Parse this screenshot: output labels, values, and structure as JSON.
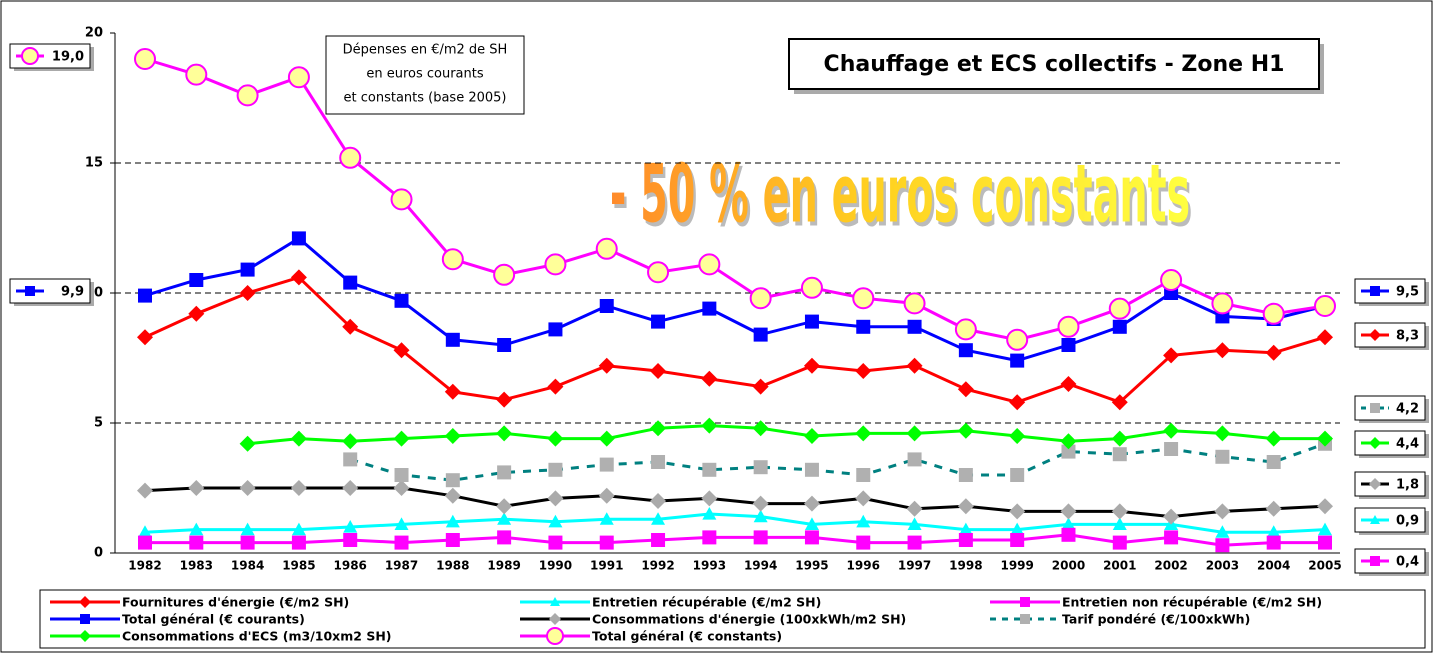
{
  "chart_data": {
    "type": "line",
    "title": "Chauffage et ECS collectifs - Zone H1",
    "annotations": [
      "Dépenses en €/m2 de SH",
      "en euros courants",
      "et constants (base 2005)",
      "- 50 % en euros constants"
    ],
    "categories": [
      "1982",
      "1983",
      "1984",
      "1985",
      "1986",
      "1987",
      "1988",
      "1989",
      "1990",
      "1991",
      "1992",
      "1993",
      "1994",
      "1995",
      "1996",
      "1997",
      "1998",
      "1999",
      "2000",
      "2001",
      "2002",
      "2003",
      "2004",
      "2005"
    ],
    "ylim": [
      0,
      20
    ],
    "yticks": [
      0,
      5,
      10,
      15,
      20
    ],
    "grid": true,
    "series": [
      {
        "name": "Fournitures d'énergie (€/m2 SH)",
        "color": "#ff0000",
        "marker": "diamond",
        "values": [
          8.3,
          9.2,
          10.0,
          10.6,
          8.7,
          7.8,
          6.2,
          5.9,
          6.4,
          7.2,
          7.0,
          6.7,
          6.4,
          7.2,
          7.0,
          7.2,
          6.3,
          5.8,
          6.5,
          5.8,
          7.6,
          7.8,
          7.7,
          8.3
        ],
        "value_labels": [
          null,
          null,
          null,
          null,
          null,
          null,
          null,
          null,
          null,
          null,
          null,
          null,
          null,
          null,
          null,
          null,
          null,
          null,
          null,
          null,
          null,
          null,
          null,
          "8,3"
        ]
      },
      {
        "name": "Entretien récupérable (€/m2 SH)",
        "color": "#00ffff",
        "marker": "triangle",
        "values": [
          0.8,
          0.9,
          0.9,
          0.9,
          1.0,
          1.1,
          1.2,
          1.3,
          1.2,
          1.3,
          1.3,
          1.5,
          1.4,
          1.1,
          1.2,
          1.1,
          0.9,
          0.9,
          1.1,
          1.1,
          1.1,
          0.8,
          0.8,
          0.9
        ],
        "value_labels": [
          null,
          null,
          null,
          null,
          null,
          null,
          null,
          null,
          null,
          null,
          null,
          null,
          null,
          null,
          null,
          null,
          null,
          null,
          null,
          null,
          null,
          null,
          null,
          "0,9"
        ]
      },
      {
        "name": "Entretien non récupérable (€/m2 SH)",
        "color": "#ff00ff",
        "marker": "square",
        "values": [
          0.4,
          0.4,
          0.4,
          0.4,
          0.5,
          0.4,
          0.5,
          0.6,
          0.4,
          0.4,
          0.5,
          0.6,
          0.6,
          0.6,
          0.4,
          0.4,
          0.5,
          0.5,
          0.7,
          0.4,
          0.6,
          0.3,
          0.4,
          0.4
        ],
        "value_labels": [
          null,
          null,
          null,
          null,
          null,
          null,
          null,
          null,
          null,
          null,
          null,
          null,
          null,
          null,
          null,
          null,
          null,
          null,
          null,
          null,
          null,
          null,
          null,
          "0,4"
        ]
      },
      {
        "name": "Total général (€ courants)",
        "color": "#0000ff",
        "marker": "square",
        "values": [
          9.9,
          10.5,
          10.9,
          12.1,
          10.4,
          9.7,
          8.2,
          8.0,
          8.6,
          9.5,
          8.9,
          9.4,
          8.4,
          8.9,
          8.7,
          8.7,
          7.8,
          7.4,
          8.0,
          8.7,
          10.0,
          9.1,
          9.0,
          9.5
        ],
        "value_labels": [
          "9,9",
          null,
          null,
          null,
          null,
          null,
          null,
          null,
          null,
          null,
          null,
          null,
          null,
          null,
          null,
          null,
          null,
          null,
          null,
          null,
          null,
          null,
          null,
          "9,5"
        ]
      },
      {
        "name": "Consommations d'énergie (100xkWh/m2 SH)",
        "color": "#000000",
        "marker": "diamond",
        "marker_color": "#aaaaaa",
        "values": [
          2.4,
          2.5,
          2.5,
          2.5,
          2.5,
          2.5,
          2.2,
          1.8,
          2.1,
          2.2,
          2.0,
          2.1,
          1.9,
          1.9,
          2.1,
          1.7,
          1.8,
          1.6,
          1.6,
          1.6,
          1.4,
          1.6,
          1.7,
          1.8
        ],
        "value_labels": [
          null,
          null,
          null,
          null,
          null,
          null,
          null,
          null,
          null,
          null,
          null,
          null,
          null,
          null,
          null,
          null,
          null,
          null,
          null,
          null,
          null,
          null,
          null,
          "1,8"
        ]
      },
      {
        "name": "Tarif pondéré (€/100xkWh)",
        "color": "#008080",
        "marker": "square",
        "marker_color": "#b0b0b0",
        "dashed": true,
        "values": [
          null,
          null,
          null,
          null,
          3.6,
          3.0,
          2.8,
          3.1,
          3.2,
          3.4,
          3.5,
          3.2,
          3.3,
          3.2,
          3.0,
          3.6,
          3.0,
          3.0,
          3.9,
          3.8,
          4.0,
          3.7,
          3.5,
          4.2
        ],
        "value_labels": [
          null,
          null,
          null,
          null,
          null,
          null,
          null,
          null,
          null,
          null,
          null,
          null,
          null,
          null,
          null,
          null,
          null,
          null,
          null,
          null,
          null,
          null,
          null,
          "4,2"
        ]
      },
      {
        "name": "Consommations d'ECS (m3/10xm2 SH)",
        "color": "#00ff00",
        "marker": "diamond",
        "values": [
          null,
          null,
          4.2,
          4.4,
          4.3,
          4.4,
          4.5,
          4.6,
          4.4,
          4.4,
          4.8,
          4.9,
          4.8,
          4.5,
          4.6,
          4.6,
          4.7,
          4.5,
          4.3,
          4.4,
          4.7,
          4.6,
          4.4,
          4.4
        ],
        "value_labels": [
          null,
          null,
          null,
          null,
          null,
          null,
          null,
          null,
          null,
          null,
          null,
          null,
          null,
          null,
          null,
          null,
          null,
          null,
          null,
          null,
          null,
          null,
          null,
          "4,4"
        ]
      },
      {
        "name": "Total général (€ constants)",
        "color": "#ff00ff",
        "marker": "circle",
        "marker_color": "#ffff99",
        "values": [
          19.0,
          18.4,
          17.6,
          18.3,
          15.2,
          13.6,
          11.3,
          10.7,
          11.1,
          11.7,
          10.8,
          11.1,
          9.8,
          10.2,
          9.8,
          9.6,
          8.6,
          8.2,
          8.7,
          9.4,
          10.5,
          9.6,
          9.2,
          9.5
        ],
        "value_labels": [
          "19,0",
          null,
          null,
          null,
          null,
          null,
          null,
          null,
          null,
          null,
          null,
          null,
          null,
          null,
          null,
          null,
          null,
          null,
          null,
          null,
          null,
          null,
          null,
          null
        ]
      }
    ]
  }
}
